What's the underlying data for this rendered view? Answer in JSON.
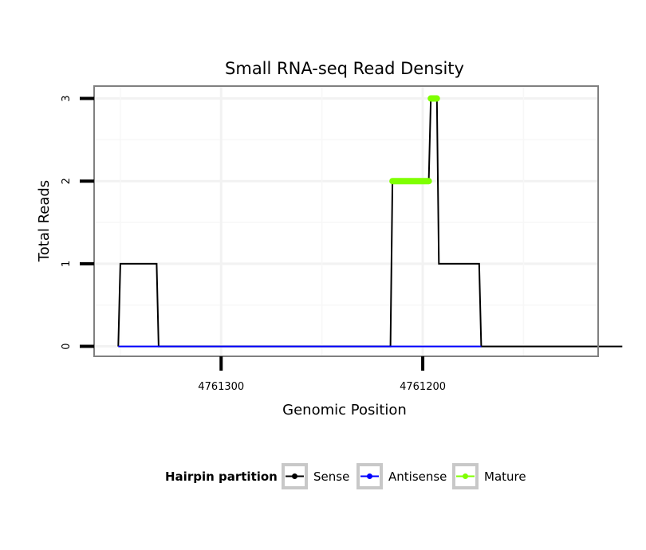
{
  "chart_data": {
    "type": "line",
    "title": "Small RNA-seq Read Density",
    "xlabel": "Genomic Position",
    "ylabel": "Total Reads",
    "x_reversed": true,
    "xlim": [
      4761363,
      4761113
    ],
    "ylim": [
      -0.12,
      3.15
    ],
    "x_ticks": [
      4761300,
      4761200
    ],
    "x_tick_labels": [
      "4761300",
      "4761200"
    ],
    "y_ticks": [
      0,
      1,
      2,
      3
    ],
    "y_tick_labels": [
      "0",
      "1",
      "2",
      "3"
    ],
    "grid": true,
    "legend": {
      "title": "Hairpin partition",
      "position": "bottom"
    },
    "series": [
      {
        "name": "Sense",
        "color": "#000000",
        "points": [
          [
            4761351,
            0
          ],
          [
            4761350,
            1
          ],
          [
            4761332,
            1
          ],
          [
            4761331,
            0
          ],
          [
            4761216,
            0
          ],
          [
            4761215,
            2
          ],
          [
            4761197,
            2
          ],
          [
            4761196,
            3
          ],
          [
            4761193,
            3
          ],
          [
            4761192,
            1
          ],
          [
            4761172,
            1
          ],
          [
            4761171,
            0
          ],
          [
            4761101,
            0
          ]
        ]
      },
      {
        "name": "Antisense",
        "color": "#0000ff",
        "points": [
          [
            4761351,
            0
          ],
          [
            4761171,
            0
          ]
        ]
      },
      {
        "name": "Mature",
        "color": "#7fff00",
        "segments": [
          {
            "x": [
              4761215,
              4761197
            ],
            "y": 2
          },
          {
            "x": [
              4761196,
              4761193
            ],
            "y": 3
          }
        ]
      }
    ]
  }
}
